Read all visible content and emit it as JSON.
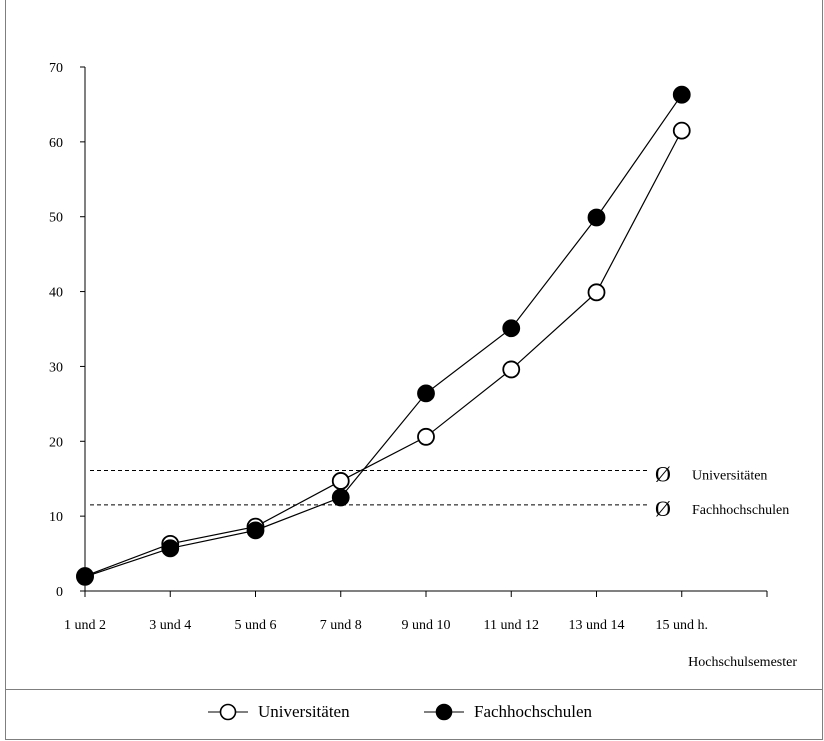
{
  "chart_data": {
    "type": "line",
    "categories": [
      "1 und 2",
      "3 und 4",
      "5 und 6",
      "7 und 8",
      "9 und 10",
      "11 und 12",
      "13 und 14",
      "15 und h."
    ],
    "series": [
      {
        "name": "Universitäten",
        "marker": "open-circle",
        "values": [
          2.0,
          6.3,
          8.6,
          14.7,
          20.6,
          29.6,
          39.9,
          61.5
        ]
      },
      {
        "name": "Fachhochschulen",
        "marker": "filled-circle",
        "values": [
          1.9,
          5.7,
          8.1,
          12.5,
          26.4,
          35.1,
          49.9,
          66.3
        ]
      }
    ],
    "reference_lines": [
      {
        "label": "Universitäten",
        "symbol": "Ø",
        "value": 16.1,
        "style": "dashed"
      },
      {
        "label": "Fachhochschulen",
        "symbol": "Ø",
        "value": 11.5,
        "style": "dashed"
      }
    ],
    "title": "",
    "xlabel": "Hochschulsemester",
    "ylabel": "",
    "ylim": [
      0,
      70
    ],
    "yticks": [
      0,
      10,
      20,
      30,
      40,
      50,
      60,
      70
    ],
    "grid": false,
    "legend_position": "bottom"
  },
  "legend": {
    "items": [
      {
        "label": "Universitäten"
      },
      {
        "label": "Fachhochschulen"
      }
    ]
  },
  "colors": {
    "line": "#000000",
    "axis": "#000000",
    "frame": "#7f7f7f"
  }
}
